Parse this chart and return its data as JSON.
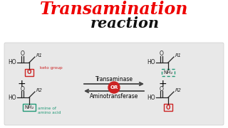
{
  "title_line1": "Transamination",
  "title_line2": "reaction",
  "title_color1": "#ee0000",
  "title_color2": "#111111",
  "bg_color": "#ffffff",
  "panel_bg": "#e8e8e8",
  "panel_edge": "#cccccc",
  "enzyme_top": "Transaminase",
  "enzyme_bottom": "Aminotransferase",
  "or_label": "OR",
  "keto_label": "keto group",
  "amine_label1": "amine of",
  "amine_label2": "amino acid",
  "arrow_color": "#444444",
  "red_box_color": "#cc2222",
  "teal_box_color": "#229977",
  "green_text_color": "#229977",
  "mol_line_color": "#222222",
  "mol_lw": 0.9
}
